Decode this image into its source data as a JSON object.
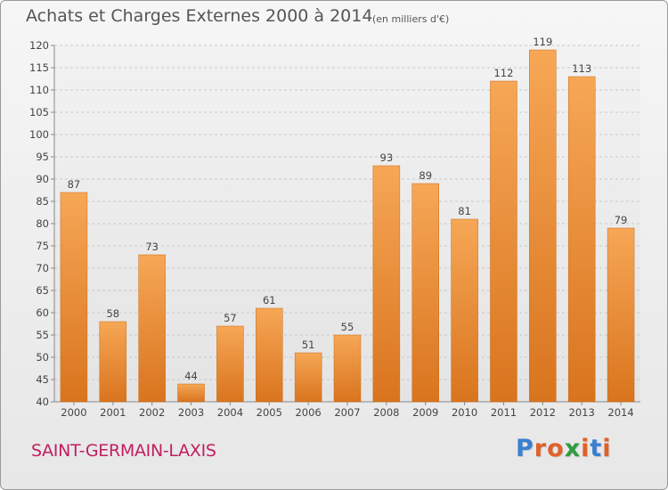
{
  "header": {
    "title": "Achats et Charges Externes 2000 à 2014",
    "unit_note": "(en milliers d'€)"
  },
  "footer": {
    "commune": "SAINT-GERMAIN-LAXIS",
    "logo": {
      "text": "Proxiti",
      "colors": [
        "#3a7fd0",
        "#e0612a",
        "#e0612a",
        "#2e9c3e",
        "#e0612a",
        "#3a7fd0",
        "#e0612a"
      ]
    }
  },
  "chart_data": {
    "type": "bar",
    "categories": [
      "2000",
      "2001",
      "2002",
      "2003",
      "2004",
      "2005",
      "2006",
      "2007",
      "2008",
      "2009",
      "2010",
      "2011",
      "2012",
      "2013",
      "2014"
    ],
    "values": [
      87,
      58,
      73,
      44,
      57,
      61,
      51,
      55,
      93,
      89,
      81,
      112,
      119,
      113,
      79
    ],
    "title": "Achats et Charges Externes 2000 à 2014",
    "ylim": [
      40,
      120
    ],
    "yticks": [
      40,
      45,
      50,
      55,
      60,
      65,
      70,
      75,
      80,
      85,
      90,
      95,
      100,
      105,
      110,
      115,
      120
    ],
    "grid": true,
    "data_labels": true,
    "bar_color": "#f09a3e"
  }
}
